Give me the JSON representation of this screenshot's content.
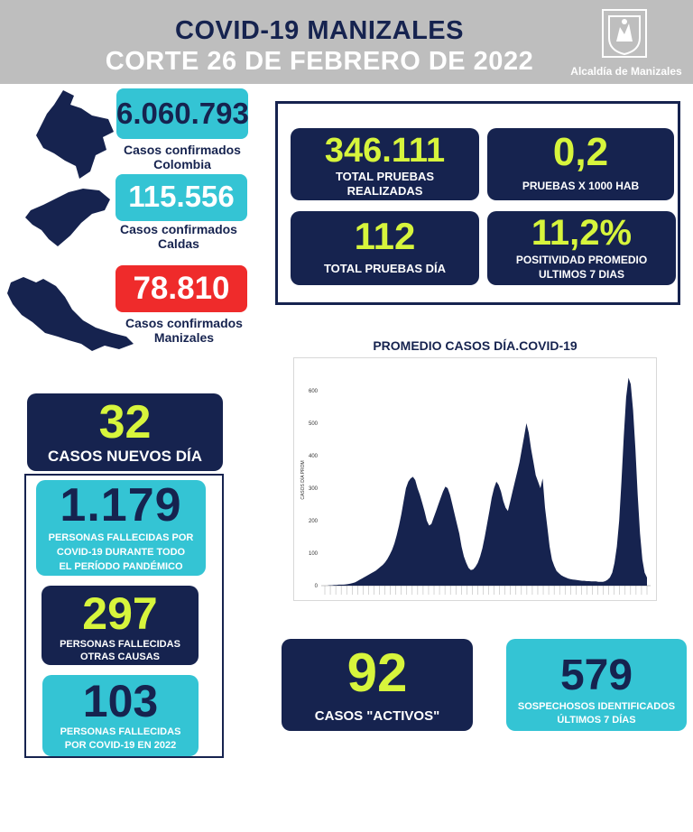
{
  "header": {
    "title": "COVID-19 MANIZALES",
    "subtitle": "CORTE 26 DE FEBRERO DE 2022",
    "logo_text": "Alcaldía de Manizales"
  },
  "colombia": {
    "value": "6.060.793",
    "label_line1": "Casos confirmados",
    "label_line2": "Colombia"
  },
  "caldas": {
    "value": "115.556",
    "label_line1": "Casos confirmados",
    "label_line2": "Caldas"
  },
  "manizales": {
    "value": "78.810",
    "label_line1": "Casos confirmados",
    "label_line2": "Manizales"
  },
  "tests": {
    "total": {
      "value": "346.111",
      "label_line1": "TOTAL PRUEBAS",
      "label_line2": "REALIZADAS"
    },
    "per_1000": {
      "value": "0,2",
      "label": "PRUEBAS X 1000 HAB"
    },
    "daily": {
      "value": "112",
      "label": "TOTAL PRUEBAS DÍA"
    },
    "positivity": {
      "value": "11,2%",
      "label_line1": "POSITIVIDAD PROMEDIO",
      "label_line2": "ULTIMOS 7 DIAS"
    }
  },
  "new_cases": {
    "value": "32",
    "label": "CASOS NUEVOS DÍA"
  },
  "deaths_total": {
    "value": "1.179",
    "label_line1": "PERSONAS FALLECIDAS POR",
    "label_line2": "COVID-19 DURANTE TODO",
    "label_line3": "EL PERÍODO PANDÉMICO"
  },
  "deaths_other": {
    "value": "297",
    "label_line1": "PERSONAS FALLECIDAS",
    "label_line2": "OTRAS CAUSAS"
  },
  "deaths_2022": {
    "value": "103",
    "label_line1": "PERSONAS FALLECIDAS",
    "label_line2": "POR COVID-19 EN 2022"
  },
  "active": {
    "value": "92",
    "label": "CASOS \"ACTIVOS\""
  },
  "suspects": {
    "value": "579",
    "label_line1": "SOSPECHOSOS IDENTIFICADOS",
    "label_line2": "ÚLTIMOS 7 DÍAS"
  },
  "colors": {
    "navy": "#16234f",
    "teal": "#34c4d4",
    "red": "#ef2b2b",
    "lime": "#d7f53c",
    "gray": "#bebebe"
  },
  "chart_data": {
    "type": "area",
    "title": "PROMEDIO CASOS DÍA.COVID-19",
    "ylabel": "CASOS DÍA PROM",
    "xlabel": "",
    "ylim": [
      0,
      650
    ],
    "yticks": [
      "0",
      "100",
      "200",
      "300",
      "400",
      "500",
      "600"
    ],
    "grid": false,
    "series": [
      {
        "values": [
          0,
          0,
          1,
          1,
          2,
          2,
          3,
          3,
          3,
          4,
          5,
          6,
          8,
          10,
          14,
          18,
          22,
          26,
          30,
          34,
          38,
          42,
          46,
          52,
          58,
          64,
          72,
          82,
          95,
          110,
          130,
          155,
          185,
          220,
          260,
          300,
          320,
          330,
          335,
          325,
          300,
          280,
          255,
          230,
          200,
          185,
          190,
          210,
          230,
          250,
          270,
          290,
          305,
          300,
          280,
          250,
          220,
          190,
          160,
          120,
          90,
          70,
          55,
          48,
          50,
          58,
          70,
          90,
          115,
          150,
          190,
          230,
          270,
          300,
          320,
          310,
          290,
          260,
          240,
          230,
          260,
          290,
          320,
          350,
          380,
          420,
          460,
          500,
          470,
          420,
          380,
          340,
          320,
          300,
          330,
          240,
          180,
          120,
          80,
          60,
          45,
          38,
          32,
          28,
          25,
          22,
          20,
          19,
          18,
          17,
          16,
          15,
          15,
          14,
          14,
          13,
          13,
          13,
          12,
          12,
          12,
          14,
          18,
          25,
          40,
          70,
          120,
          200,
          320,
          460,
          580,
          640,
          620,
          540,
          420,
          280,
          160,
          80,
          40,
          25
        ]
      }
    ]
  }
}
